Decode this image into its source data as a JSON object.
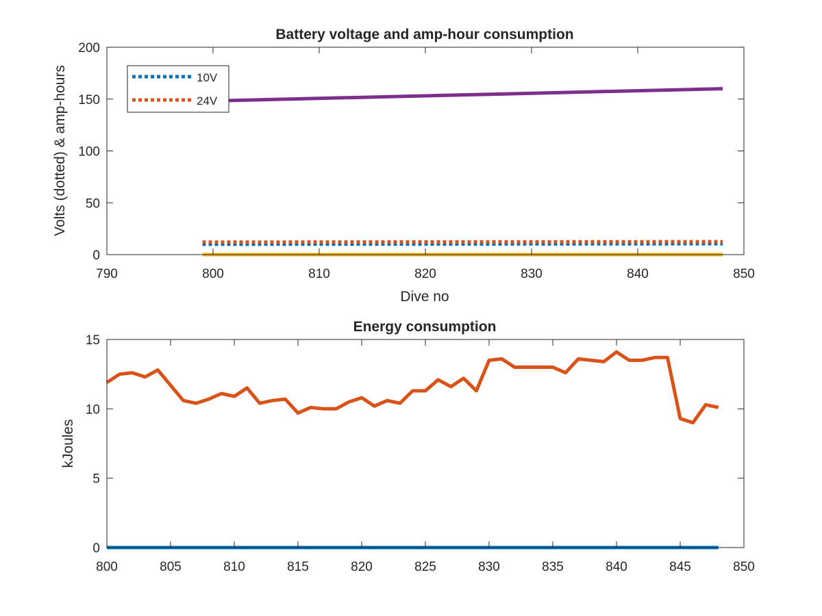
{
  "chart_data": [
    {
      "type": "line",
      "title": "Battery voltage and amp-hour consumption",
      "xlabel": "Dive no",
      "ylabel": "Volts (dotted) & amp-hours",
      "xlim": [
        790,
        850
      ],
      "ylim": [
        0,
        200
      ],
      "xticks": [
        790,
        800,
        810,
        820,
        830,
        840,
        850
      ],
      "yticks": [
        0,
        50,
        100,
        150,
        200
      ],
      "grid": false,
      "legend_position": "top-left",
      "series": [
        {
          "name": "10V",
          "style": "dotted",
          "color": "#0072BD",
          "x": [
            799,
            848
          ],
          "y": [
            10,
            10.5
          ]
        },
        {
          "name": "24V",
          "style": "dotted",
          "color": "#D95319",
          "x": [
            799,
            848
          ],
          "y": [
            12,
            12.5
          ]
        },
        {
          "name": "",
          "style": "solid",
          "color": "#EDB120",
          "x": [
            799,
            848
          ],
          "y": [
            0,
            0
          ]
        },
        {
          "name": "",
          "style": "solid",
          "color": "#7E2F8E",
          "x": [
            799,
            848
          ],
          "y": [
            148,
            160
          ]
        }
      ]
    },
    {
      "type": "line",
      "title": "Energy consumption",
      "xlabel": "",
      "ylabel": "kJoules",
      "xlim": [
        800,
        850
      ],
      "ylim": [
        0,
        15
      ],
      "xticks": [
        800,
        805,
        810,
        815,
        820,
        825,
        830,
        835,
        840,
        845,
        850
      ],
      "yticks": [
        0,
        5,
        10,
        15
      ],
      "grid": false,
      "series": [
        {
          "name": "",
          "color": "#0072BD",
          "x": [
            800,
            848
          ],
          "y": [
            0,
            0
          ]
        },
        {
          "name": "",
          "color": "#D95319",
          "x": [
            800,
            801,
            802,
            803,
            804,
            805,
            806,
            807,
            808,
            809,
            810,
            811,
            812,
            813,
            814,
            815,
            816,
            817,
            818,
            819,
            820,
            821,
            822,
            823,
            824,
            825,
            826,
            827,
            828,
            829,
            830,
            831,
            832,
            833,
            834,
            835,
            836,
            837,
            838,
            839,
            840,
            841,
            842,
            843,
            844,
            845,
            846,
            847,
            848
          ],
          "y": [
            11.9,
            12.5,
            12.6,
            12.3,
            12.8,
            11.7,
            10.6,
            10.4,
            10.7,
            11.1,
            10.9,
            11.5,
            10.4,
            10.6,
            10.7,
            9.7,
            10.1,
            10.0,
            10.0,
            10.5,
            10.8,
            10.2,
            10.6,
            10.4,
            11.3,
            11.3,
            12.1,
            11.6,
            12.2,
            11.3,
            13.5,
            13.6,
            13.0,
            13.0,
            13.0,
            13.0,
            12.6,
            13.6,
            13.5,
            13.4,
            14.1,
            13.5,
            13.5,
            13.7,
            13.7,
            9.3,
            9.0,
            10.3,
            10.1
          ]
        }
      ]
    }
  ]
}
